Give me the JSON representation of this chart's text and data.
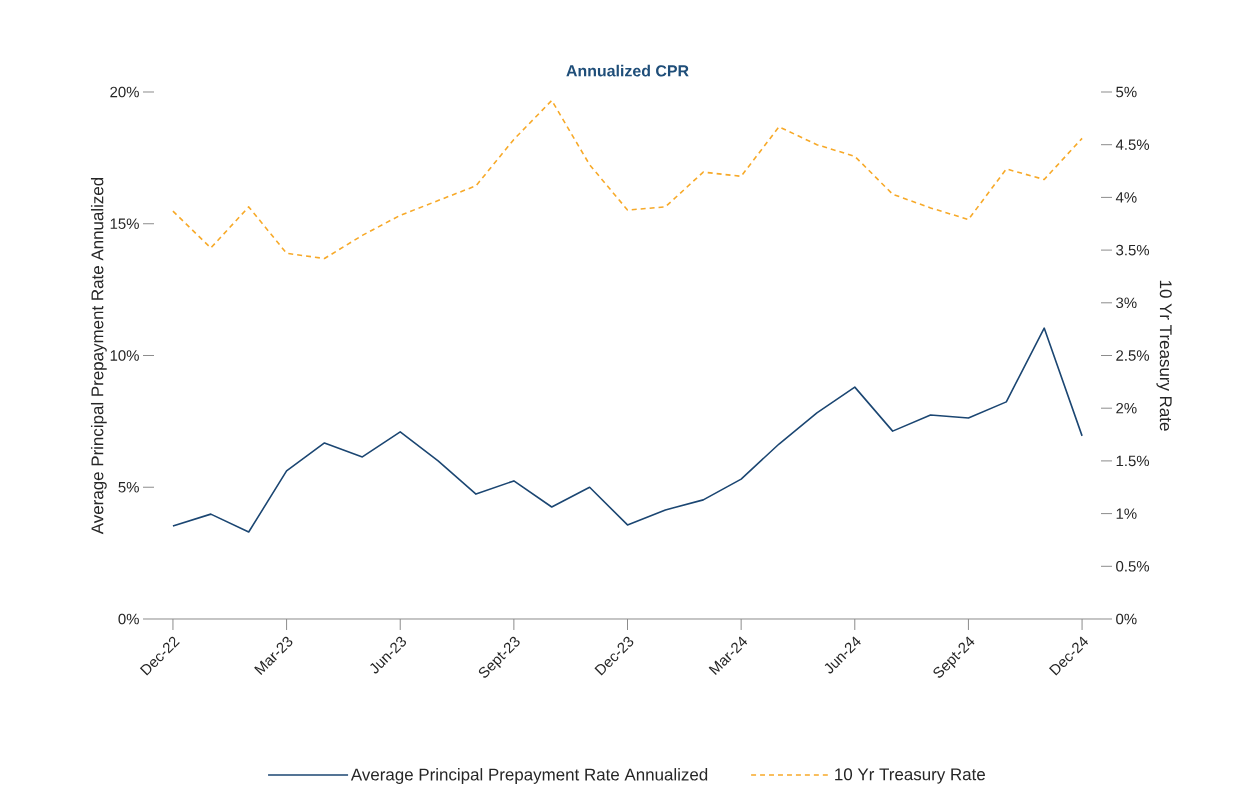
{
  "chart_data": {
    "type": "line",
    "title": "Annualized CPR",
    "ylabel": "Average Principal Prepayment Rate Annualized",
    "y2label": "10 Yr Treasury Rate",
    "categories": [
      "Dec-22",
      null,
      null,
      "Mar-23",
      null,
      null,
      "Jun-23",
      null,
      null,
      "Sept-23",
      null,
      null,
      "Dec-23",
      null,
      null,
      "Mar-24",
      null,
      null,
      "Jun-24",
      null,
      null,
      "Sept-24",
      null,
      null,
      "Dec-24"
    ],
    "series": [
      {
        "name": "Average Principal Prepayment Rate Annualized",
        "color": "#1b4672",
        "line_style": "solid",
        "values": [
          3.53,
          3.98,
          3.3,
          5.62,
          6.68,
          6.15,
          7.1,
          6.0,
          4.74,
          5.24,
          4.25,
          5.0,
          3.57,
          4.14,
          4.52,
          5.31,
          6.64,
          7.82,
          8.8,
          7.13,
          7.74,
          7.63,
          8.24,
          11.04,
          6.95
        ]
      },
      {
        "name": "10 Yr Treasury Rate",
        "color": "#f7a928",
        "line_style": "dashed",
        "axis": "y2",
        "values": [
          3.87,
          3.52,
          3.91,
          3.47,
          3.42,
          3.64,
          3.83,
          3.97,
          4.11,
          4.55,
          4.92,
          4.31,
          3.88,
          3.91,
          4.24,
          4.2,
          4.67,
          4.5,
          4.39,
          4.03,
          3.9,
          3.79,
          4.27,
          4.17,
          4.56
        ]
      }
    ],
    "ylim": [
      0,
      20
    ],
    "yticks": [
      {
        "value": 0,
        "label": "0%"
      },
      {
        "value": 5,
        "label": "5%"
      },
      {
        "value": 10,
        "label": "10%"
      },
      {
        "value": 15,
        "label": "15%"
      },
      {
        "value": 20,
        "label": "20%"
      }
    ],
    "y2lim": [
      0,
      5
    ],
    "y2ticks": [
      {
        "value": 0,
        "label": "0%"
      },
      {
        "value": 0.5,
        "label": "0.5%"
      },
      {
        "value": 1,
        "label": "1%"
      },
      {
        "value": 1.5,
        "label": "1.5%"
      },
      {
        "value": 2,
        "label": "2%"
      },
      {
        "value": 2.5,
        "label": "2.5%"
      },
      {
        "value": 3,
        "label": "3%"
      },
      {
        "value": 3.5,
        "label": "3.5%"
      },
      {
        "value": 4,
        "label": "4%"
      },
      {
        "value": 4.5,
        "label": "4.5%"
      },
      {
        "value": 5,
        "label": "5%"
      }
    ],
    "legend": "bottom"
  }
}
